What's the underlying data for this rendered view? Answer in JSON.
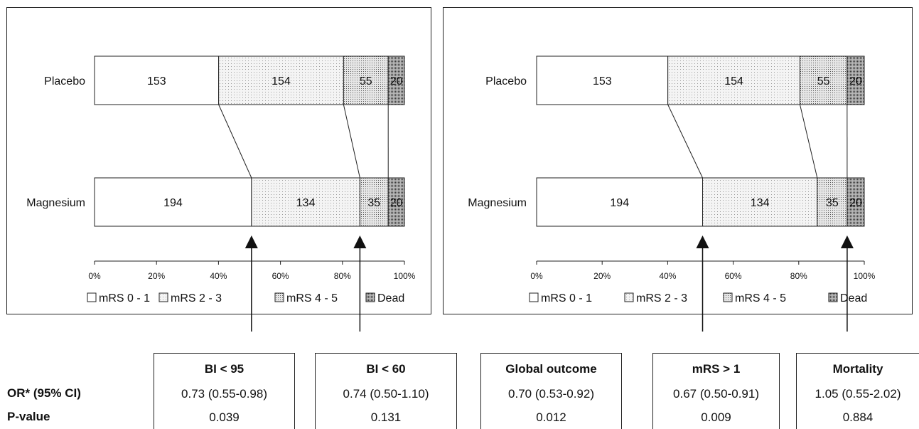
{
  "chart_data": [
    {
      "type": "bar",
      "stacked": "percent",
      "orientation": "horizontal",
      "categories": [
        "Placebo",
        "Magnesium"
      ],
      "series": [
        {
          "name": "mRS 0 - 1",
          "values": [
            153,
            194
          ],
          "pattern": "white"
        },
        {
          "name": "mRS 2 - 3",
          "values": [
            154,
            134
          ],
          "pattern": "light-dots"
        },
        {
          "name": "mRS 4 - 5",
          "values": [
            55,
            35
          ],
          "pattern": "medium-dots"
        },
        {
          "name": "Dead",
          "values": [
            20,
            20
          ],
          "pattern": "dense-dots"
        }
      ],
      "xticks": [
        "0%",
        "20%",
        "40%",
        "60%",
        "80%",
        "100%"
      ],
      "xlim": [
        0,
        100
      ],
      "legend": "bottom",
      "arrows_at_boundaries": [
        1,
        2
      ]
    },
    {
      "type": "bar",
      "stacked": "percent",
      "orientation": "horizontal",
      "categories": [
        "Placebo",
        "Magnesium"
      ],
      "series": [
        {
          "name": "mRS 0 - 1",
          "values": [
            153,
            194
          ],
          "pattern": "white"
        },
        {
          "name": "mRS 2 - 3",
          "values": [
            154,
            134
          ],
          "pattern": "light-dots"
        },
        {
          "name": "mRS 4 - 5",
          "values": [
            55,
            35
          ],
          "pattern": "medium-dots"
        },
        {
          "name": "Dead",
          "values": [
            20,
            20
          ],
          "pattern": "dense-dots"
        }
      ],
      "xticks": [
        "0%",
        "20%",
        "40%",
        "60%",
        "80%",
        "100%"
      ],
      "xlim": [
        0,
        100
      ],
      "legend": "bottom",
      "arrows_at_boundaries": [
        1,
        3
      ]
    }
  ],
  "table": {
    "row_labels": {
      "or": "OR* (95% CI)",
      "p": "P-value"
    },
    "columns": [
      {
        "title": "BI < 95",
        "or": "0.73 (0.55-0.98)",
        "p": "0.039"
      },
      {
        "title": "BI < 60",
        "or": "0.74 (0.50-1.10)",
        "p": "0.131"
      },
      {
        "title": "Global outcome",
        "or": "0.70 (0.53-0.92)",
        "p": "0.012"
      },
      {
        "title": "mRS > 1",
        "or": "0.67 (0.50-0.91)",
        "p": "0.009"
      },
      {
        "title": "Mortality",
        "or": "1.05 (0.55-2.02)",
        "p": "0.884"
      }
    ]
  }
}
